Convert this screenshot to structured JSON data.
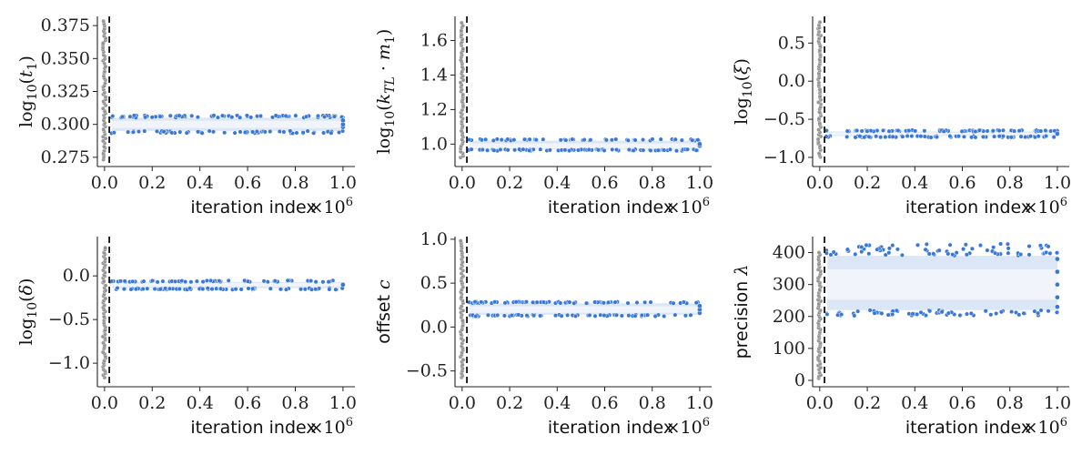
{
  "colors": {
    "trace": "#3a78d8",
    "trace_fill": "#cfdff4",
    "burnin": "#8c8c8c",
    "burnin_line": "#111111",
    "axis": "#222222"
  },
  "chart_data": [
    {
      "type": "scatter",
      "id": "t1",
      "ylabel_parts": [
        {
          "t": "log"
        },
        {
          "t": "10",
          "sub": true
        },
        {
          "t": "("
        },
        {
          "t": "t",
          "i": true
        },
        {
          "t": "1",
          "sub": true
        },
        {
          "t": ")"
        }
      ],
      "ylabel_text": "log10(t1)",
      "xlabel": "iteration index",
      "x_multiplier": "×10^6",
      "x_multiplier_base": "×10",
      "x_multiplier_exp": "6",
      "xlim": [
        -0.03,
        1.05
      ],
      "ylim": [
        0.268,
        0.382
      ],
      "xticks": [
        0.0,
        0.2,
        0.4,
        0.6,
        0.8,
        1.0
      ],
      "xtick_labels": [
        "0.0",
        "0.2",
        "0.4",
        "0.6",
        "0.8",
        "1.0"
      ],
      "yticks": [
        0.275,
        0.3,
        0.325,
        0.35,
        0.375
      ],
      "ytick_labels": [
        "0.275",
        "0.300",
        "0.325",
        "0.350",
        "0.375"
      ],
      "burnin_x": 0.02,
      "burnin_range": [
        0.273,
        0.378
      ],
      "trace_mean": 0.3,
      "trace_band": [
        0.295,
        0.305
      ],
      "trace_outliers": [
        0.293,
        0.307
      ],
      "trace_end_points": [
        0.298,
        0.3,
        0.303
      ]
    },
    {
      "type": "scatter",
      "id": "ktl-m1",
      "ylabel_parts": [
        {
          "t": "log"
        },
        {
          "t": "10",
          "sub": true
        },
        {
          "t": "("
        },
        {
          "t": "k",
          "i": true
        },
        {
          "t": "TL",
          "sub": true,
          "i": true
        },
        {
          "t": " · "
        },
        {
          "t": "m",
          "i": true
        },
        {
          "t": "1",
          "sub": true
        },
        {
          "t": ")"
        }
      ],
      "ylabel_text": "log10(kTL · m1)",
      "xlabel": "iteration index",
      "x_multiplier": "×10^6",
      "x_multiplier_base": "×10",
      "x_multiplier_exp": "6",
      "xlim": [
        -0.03,
        1.05
      ],
      "ylim": [
        0.87,
        1.74
      ],
      "xticks": [
        0.0,
        0.2,
        0.4,
        0.6,
        0.8,
        1.0
      ],
      "xtick_labels": [
        "0.0",
        "0.2",
        "0.4",
        "0.6",
        "0.8",
        "1.0"
      ],
      "yticks": [
        1.0,
        1.2,
        1.4,
        1.6
      ],
      "ytick_labels": [
        "1.0",
        "1.2",
        "1.4",
        "1.6"
      ],
      "burnin_x": 0.02,
      "burnin_range": [
        0.92,
        1.7
      ],
      "trace_mean": 0.99,
      "trace_band": [
        0.97,
        1.02
      ],
      "trace_outliers": [
        0.96,
        1.03
      ],
      "trace_end_points": [
        0.99,
        1.0
      ]
    },
    {
      "type": "scatter",
      "id": "xi",
      "ylabel_parts": [
        {
          "t": "log"
        },
        {
          "t": "10",
          "sub": true
        },
        {
          "t": "("
        },
        {
          "t": "ξ",
          "i": true
        },
        {
          "t": ")"
        }
      ],
      "ylabel_text": "log10(ξ)",
      "xlabel": "iteration index",
      "x_multiplier": "×10^6",
      "x_multiplier_base": "×10",
      "x_multiplier_exp": "6",
      "xlim": [
        -0.03,
        1.05
      ],
      "ylim": [
        -1.12,
        0.85
      ],
      "xticks": [
        0.0,
        0.2,
        0.4,
        0.6,
        0.8,
        1.0
      ],
      "xtick_labels": [
        "0.0",
        "0.2",
        "0.4",
        "0.6",
        "0.8",
        "1.0"
      ],
      "yticks": [
        -1.0,
        -0.5,
        0.0,
        0.5
      ],
      "ytick_labels": [
        "−1.0",
        "−0.5",
        "0.0",
        "0.5"
      ],
      "burnin_x": 0.02,
      "burnin_range": [
        -1.0,
        0.77
      ],
      "trace_mean": -0.69,
      "trace_band": [
        -0.72,
        -0.66
      ],
      "trace_outliers": [
        -0.74,
        -0.64
      ],
      "trace_end_points": [
        -0.69
      ]
    },
    {
      "type": "scatter",
      "id": "delta",
      "ylabel_parts": [
        {
          "t": "log"
        },
        {
          "t": "10",
          "sub": true
        },
        {
          "t": "("
        },
        {
          "t": "δ",
          "i": true
        },
        {
          "t": ")"
        }
      ],
      "ylabel_text": "log10(δ)",
      "xlabel": "iteration index",
      "x_multiplier": "×10^6",
      "x_multiplier_base": "×10",
      "x_multiplier_exp": "6",
      "xlim": [
        -0.03,
        1.05
      ],
      "ylim": [
        -1.27,
        0.45
      ],
      "xticks": [
        0.0,
        0.2,
        0.4,
        0.6,
        0.8,
        1.0
      ],
      "xtick_labels": [
        "0.0",
        "0.2",
        "0.4",
        "0.6",
        "0.8",
        "1.0"
      ],
      "yticks": [
        -1.0,
        -0.5,
        0.0
      ],
      "ytick_labels": [
        "−1.0",
        "−0.5",
        "0.0"
      ],
      "burnin_x": 0.02,
      "burnin_range": [
        -1.17,
        0.32
      ],
      "trace_mean": -0.1,
      "trace_band": [
        -0.14,
        -0.07
      ],
      "trace_outliers": [
        -0.16,
        -0.05
      ],
      "trace_end_points": [
        -0.1
      ]
    },
    {
      "type": "scatter",
      "id": "offset",
      "ylabel_parts": [
        {
          "t": "offset ",
          "sans": true
        },
        {
          "t": "c",
          "i": true
        }
      ],
      "ylabel_text": "offset c",
      "xlabel": "iteration index",
      "x_multiplier": "×10^6",
      "x_multiplier_base": "×10",
      "x_multiplier_exp": "6",
      "xlim": [
        -0.03,
        1.05
      ],
      "ylim": [
        -0.68,
        1.03
      ],
      "xticks": [
        0.0,
        0.2,
        0.4,
        0.6,
        0.8,
        1.0
      ],
      "xtick_labels": [
        "0.0",
        "0.2",
        "0.4",
        "0.6",
        "0.8",
        "1.0"
      ],
      "yticks": [
        -0.5,
        0.0,
        0.5,
        1.0
      ],
      "ytick_labels": [
        "−0.5",
        "0.0",
        "0.5",
        "1.0"
      ],
      "burnin_x": 0.02,
      "burnin_range": [
        -0.58,
        0.98
      ],
      "trace_mean": 0.2,
      "trace_band": [
        0.14,
        0.27
      ],
      "trace_outliers": [
        0.12,
        0.29
      ],
      "trace_end_points": [
        0.16,
        0.2,
        0.24
      ]
    },
    {
      "type": "scatter",
      "id": "precision",
      "ylabel_parts": [
        {
          "t": "precision ",
          "sans": true
        },
        {
          "t": "λ",
          "i": true
        }
      ],
      "ylabel_text": "precision λ",
      "xlabel": "iteration index",
      "x_multiplier": "×10^6",
      "x_multiplier_base": "×10",
      "x_multiplier_exp": "6",
      "xlim": [
        -0.03,
        1.05
      ],
      "ylim": [
        -20,
        450
      ],
      "xticks": [
        0.0,
        0.2,
        0.4,
        0.6,
        0.8,
        1.0
      ],
      "xtick_labels": [
        "0.0",
        "0.2",
        "0.4",
        "0.6",
        "0.8",
        "1.0"
      ],
      "yticks": [
        0,
        100,
        200,
        300,
        400
      ],
      "ytick_labels": [
        "0",
        "100",
        "200",
        "300",
        "400"
      ],
      "burnin_x": 0.02,
      "burnin_range": [
        5,
        400
      ],
      "trace_mean": 300,
      "trace_band": [
        220,
        390
      ],
      "trace_outliers": [
        200,
        432
      ],
      "trace_end_points": [
        230,
        260,
        300,
        340,
        380
      ]
    }
  ]
}
